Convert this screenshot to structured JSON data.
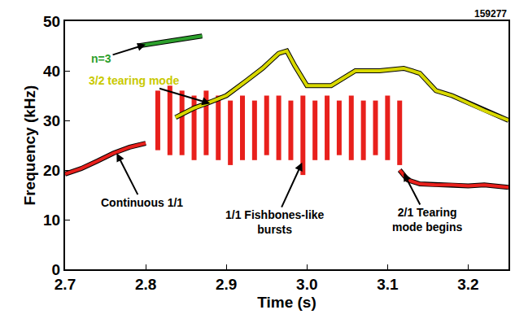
{
  "chart_data": {
    "type": "line",
    "title": "159277",
    "x_label": "Time (s)",
    "y_label": "Frequency (kHz)",
    "xlim": [
      2.7,
      3.25
    ],
    "xticks": [
      2.7,
      2.8,
      2.9,
      {
        "value": 3,
        "label": "3.0"
      },
      3.1,
      3.2
    ],
    "ylim": [
      0,
      50
    ],
    "yticks": [
      0,
      10,
      20,
      30,
      40,
      50
    ],
    "grid": false,
    "series": [
      {
        "type": "line",
        "color": "#e8201c",
        "x": [
          2.7,
          2.72,
          2.74,
          2.76,
          2.78,
          2.8
        ],
        "values": [
          19.2,
          20.3,
          21.8,
          23.4,
          24.6,
          25.4
        ]
      },
      {
        "type": "burst",
        "color": "#e8201c",
        "x": [
          2.815,
          2.83,
          2.845,
          2.86,
          2.875,
          2.89,
          2.905,
          2.92,
          2.935,
          2.95,
          2.965,
          2.98,
          2.995,
          3.01,
          3.025,
          3.04,
          3.055,
          3.07,
          3.085,
          3.1,
          3.115
        ],
        "low": [
          24,
          23,
          23,
          22,
          23,
          22,
          21,
          22,
          22,
          23,
          22,
          22,
          19,
          22,
          22,
          23,
          22,
          22,
          23,
          22,
          21
        ],
        "high": [
          36,
          37,
          36,
          35,
          36,
          35,
          34,
          35,
          34,
          35,
          35,
          34,
          35,
          34,
          35,
          34,
          35,
          34,
          34,
          35,
          34
        ]
      },
      {
        "type": "line",
        "color": "#e8201c",
        "x": [
          3.115,
          3.125,
          3.14,
          3.16,
          3.18,
          3.2,
          3.22,
          3.25
        ],
        "values": [
          20,
          18,
          17.2,
          17,
          17,
          16.8,
          17,
          16.5
        ]
      },
      {
        "type": "line",
        "color": "#d8d800",
        "x": [
          2.837,
          2.86,
          2.88,
          2.9,
          2.925,
          2.945,
          2.965,
          2.975,
          2.985,
          3.0,
          3.03,
          3.06,
          3.09,
          3.12,
          3.14,
          3.16,
          3.18,
          3.2,
          3.22,
          3.25
        ],
        "values": [
          30.6,
          32.5,
          33.7,
          35,
          38,
          40.5,
          43.5,
          44,
          41,
          37,
          37,
          40,
          40,
          40.5,
          39.5,
          36,
          35,
          33.5,
          32,
          30
        ]
      },
      {
        "type": "line",
        "color": "#2ca02c",
        "x": [
          2.79,
          2.81,
          2.83,
          2.85,
          2.87
        ],
        "values": [
          45,
          45.5,
          46,
          46.5,
          47
        ]
      }
    ],
    "annotations": [
      {
        "text": "Continuous 1/1",
        "color": "#000000",
        "x": 2.764,
        "y": 23.4,
        "text_x": 2.795,
        "text_y": 13.5
      },
      {
        "text": "3/2 tearing mode",
        "color": "#c9c900",
        "x": 2.88,
        "y": 33.4,
        "text_x": 2.785,
        "text_y": 38
      },
      {
        "text": "n=3",
        "color": "#2ca02c",
        "x": 2.8,
        "y": 45.3,
        "text_x": 2.745,
        "text_y": 42.5
      },
      {
        "text": "1/1 Fishbones-like\nbursts",
        "color": "#000000",
        "x": 2.994,
        "y": 21.5,
        "text_x": 2.96,
        "text_y": 9.5
      },
      {
        "text": "2/1 Tearing\nmode begins",
        "color": "#000000",
        "x": 3.12,
        "y": 19.4,
        "text_x": 3.15,
        "text_y": 10
      }
    ]
  }
}
